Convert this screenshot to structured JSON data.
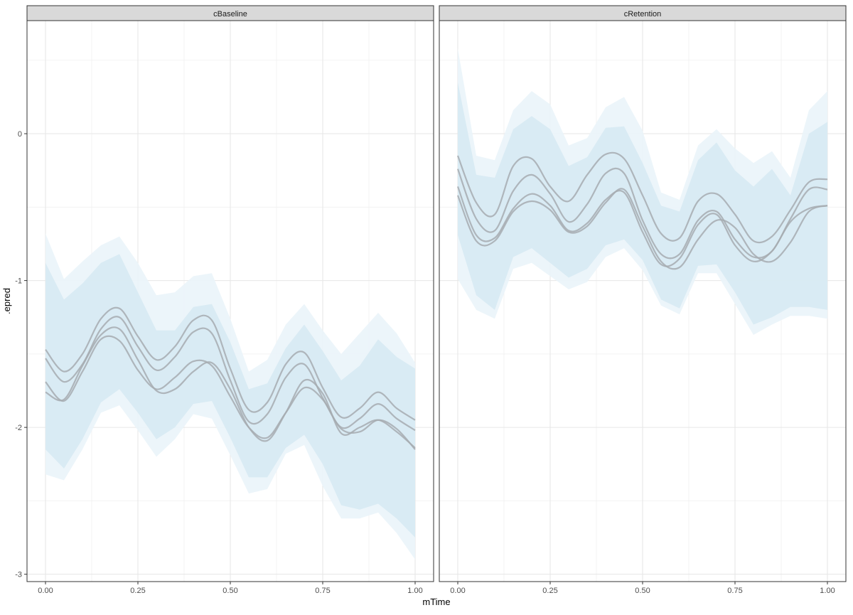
{
  "chart_data": {
    "type": "line",
    "xlabel": "mTime",
    "ylabel": ".epred",
    "xlim": [
      -0.05,
      1.05
    ],
    "ylim": [
      -3.05,
      0.77
    ],
    "x_ticks": [
      0.0,
      0.25,
      0.5,
      0.75,
      1.0
    ],
    "x_tick_labels": [
      "0.00",
      "0.25",
      "0.50",
      "0.75",
      "1.00"
    ],
    "y_ticks": [
      -3,
      -2,
      -1,
      0
    ],
    "y_tick_labels": [
      "-3",
      "-2",
      "-1",
      "0"
    ],
    "grid": true,
    "colors": {
      "ribbon": "#d6e9f2",
      "ribbon_light": "#eaf4fa",
      "line": "#a6acb0",
      "strip": "#d9d9d9",
      "panel_border": "#333333"
    },
    "x": [
      0.0,
      0.05,
      0.1,
      0.15,
      0.2,
      0.25,
      0.3,
      0.35,
      0.4,
      0.45,
      0.5,
      0.55,
      0.6,
      0.65,
      0.7,
      0.75,
      0.8,
      0.85,
      0.9,
      0.95,
      1.0
    ],
    "panels": [
      {
        "strip": "cBaseline",
        "ribbons": [
          {
            "level": "outer",
            "upper": [
              -0.68,
              -0.99,
              -0.87,
              -0.76,
              -0.7,
              -0.88,
              -1.1,
              -1.08,
              -0.97,
              -0.95,
              -1.26,
              -1.62,
              -1.54,
              -1.3,
              -1.16,
              -1.34,
              -1.5,
              -1.36,
              -1.22,
              -1.36,
              -1.56
            ],
            "lower": [
              -2.32,
              -2.36,
              -2.15,
              -1.9,
              -1.85,
              -2.02,
              -2.2,
              -2.08,
              -1.91,
              -1.94,
              -2.19,
              -2.45,
              -2.42,
              -2.18,
              -2.12,
              -2.4,
              -2.62,
              -2.62,
              -2.58,
              -2.72,
              -2.9
            ]
          },
          {
            "level": "inner",
            "upper": [
              -0.88,
              -1.13,
              -1.02,
              -0.88,
              -0.82,
              -1.08,
              -1.34,
              -1.34,
              -1.18,
              -1.16,
              -1.42,
              -1.74,
              -1.7,
              -1.46,
              -1.3,
              -1.48,
              -1.68,
              -1.58,
              -1.4,
              -1.52,
              -1.6
            ],
            "lower": [
              -2.15,
              -2.28,
              -2.08,
              -1.83,
              -1.74,
              -1.9,
              -2.08,
              -2.0,
              -1.84,
              -1.82,
              -2.07,
              -2.34,
              -2.34,
              -2.14,
              -2.05,
              -2.25,
              -2.53,
              -2.56,
              -2.52,
              -2.62,
              -2.75
            ]
          }
        ],
        "series": [
          {
            "values": [
              -1.47,
              -1.62,
              -1.5,
              -1.26,
              -1.19,
              -1.38,
              -1.54,
              -1.45,
              -1.27,
              -1.27,
              -1.6,
              -1.88,
              -1.83,
              -1.57,
              -1.49,
              -1.73,
              -1.93,
              -1.87,
              -1.76,
              -1.87,
              -1.95
            ]
          },
          {
            "values": [
              -1.53,
              -1.69,
              -1.57,
              -1.33,
              -1.25,
              -1.45,
              -1.61,
              -1.52,
              -1.35,
              -1.36,
              -1.68,
              -1.96,
              -1.91,
              -1.66,
              -1.57,
              -1.8,
              -2.0,
              -1.94,
              -1.84,
              -1.94,
              -2.02
            ]
          },
          {
            "values": [
              -1.69,
              -1.82,
              -1.62,
              -1.4,
              -1.41,
              -1.61,
              -1.74,
              -1.66,
              -1.55,
              -1.58,
              -1.79,
              -2.0,
              -2.07,
              -1.9,
              -1.73,
              -1.81,
              -2.01,
              -2.03,
              -1.95,
              -2.01,
              -2.15
            ]
          },
          {
            "values": [
              -1.76,
              -1.81,
              -1.58,
              -1.37,
              -1.33,
              -1.54,
              -1.75,
              -1.74,
              -1.62,
              -1.56,
              -1.74,
              -2.0,
              -2.09,
              -1.9,
              -1.68,
              -1.77,
              -2.04,
              -2.0,
              -1.95,
              -2.03,
              -2.14
            ]
          }
        ]
      },
      {
        "strip": "cRetention",
        "ribbons": [
          {
            "level": "outer",
            "upper": [
              0.58,
              -0.15,
              -0.18,
              0.16,
              0.29,
              0.2,
              -0.08,
              -0.03,
              0.18,
              0.25,
              0.02,
              -0.4,
              -0.45,
              -0.08,
              0.03,
              -0.1,
              -0.2,
              -0.12,
              -0.3,
              0.16,
              0.29
            ],
            "lower": [
              -0.99,
              -1.2,
              -1.26,
              -0.92,
              -0.88,
              -0.97,
              -1.06,
              -1.01,
              -0.84,
              -0.78,
              -0.93,
              -1.17,
              -1.23,
              -0.95,
              -0.95,
              -1.16,
              -1.37,
              -1.3,
              -1.24,
              -1.24,
              -1.26
            ]
          },
          {
            "level": "inner",
            "upper": [
              0.35,
              -0.28,
              -0.3,
              0.03,
              0.12,
              0.03,
              -0.22,
              -0.16,
              0.04,
              0.05,
              -0.2,
              -0.49,
              -0.53,
              -0.18,
              -0.06,
              -0.25,
              -0.36,
              -0.24,
              -0.42,
              0.0,
              0.08
            ],
            "lower": [
              -0.69,
              -1.1,
              -1.2,
              -0.84,
              -0.78,
              -0.88,
              -0.98,
              -0.92,
              -0.76,
              -0.72,
              -0.86,
              -1.13,
              -1.19,
              -0.9,
              -0.89,
              -1.08,
              -1.3,
              -1.25,
              -1.18,
              -1.18,
              -1.2
            ]
          }
        ],
        "series": [
          {
            "values": [
              -0.15,
              -0.47,
              -0.55,
              -0.22,
              -0.17,
              -0.36,
              -0.46,
              -0.28,
              -0.14,
              -0.17,
              -0.42,
              -0.68,
              -0.71,
              -0.46,
              -0.41,
              -0.55,
              -0.73,
              -0.7,
              -0.52,
              -0.33,
              -0.31
            ]
          },
          {
            "values": [
              -0.24,
              -0.58,
              -0.66,
              -0.39,
              -0.28,
              -0.41,
              -0.6,
              -0.48,
              -0.27,
              -0.27,
              -0.59,
              -0.82,
              -0.82,
              -0.59,
              -0.53,
              -0.72,
              -0.84,
              -0.8,
              -0.58,
              -0.38,
              -0.38
            ]
          },
          {
            "values": [
              -0.36,
              -0.69,
              -0.71,
              -0.51,
              -0.41,
              -0.49,
              -0.66,
              -0.61,
              -0.45,
              -0.4,
              -0.67,
              -0.89,
              -0.85,
              -0.62,
              -0.55,
              -0.76,
              -0.87,
              -0.8,
              -0.6,
              -0.51,
              -0.49
            ]
          },
          {
            "values": [
              -0.42,
              -0.73,
              -0.73,
              -0.53,
              -0.46,
              -0.52,
              -0.67,
              -0.63,
              -0.47,
              -0.38,
              -0.63,
              -0.87,
              -0.91,
              -0.72,
              -0.59,
              -0.64,
              -0.82,
              -0.87,
              -0.74,
              -0.53,
              -0.49
            ]
          }
        ]
      }
    ]
  }
}
